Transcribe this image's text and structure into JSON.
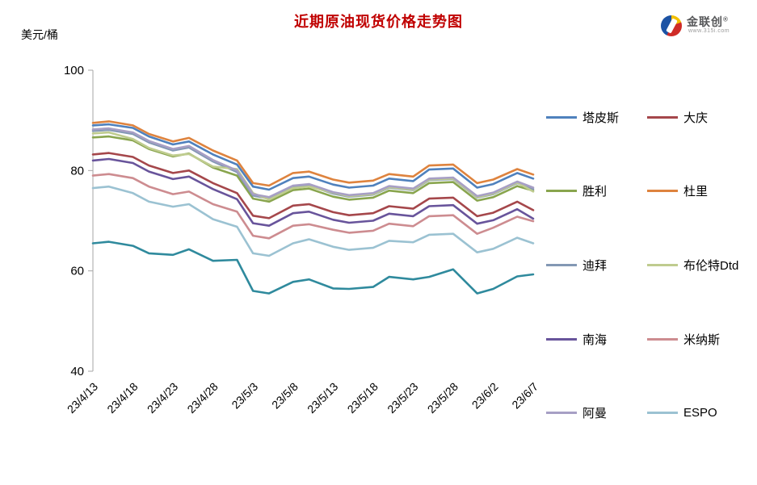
{
  "header": {
    "title": "近期原油现货价格走势图",
    "title_color": "#C00000",
    "unit_label": "美元/桶",
    "logo": {
      "brand": "金联创",
      "reg_mark": "®",
      "url_text": "www.315i.com"
    }
  },
  "chart_data": {
    "type": "line",
    "title": "近期原油现货价格走势图",
    "ylabel": "美元/桶",
    "ylim": [
      40,
      100
    ],
    "yticks": [
      40,
      60,
      80,
      100
    ],
    "grid": false,
    "legend_position": "right",
    "axis_color": "#A6A6A6",
    "x_tick_labels": [
      "23/4/13",
      "23/4/18",
      "23/4/23",
      "23/4/28",
      "23/5/3",
      "23/5/8",
      "23/5/13",
      "23/5/18",
      "23/5/23",
      "23/5/28",
      "23/6/2",
      "23/6/7"
    ],
    "x_tick_days": [
      0,
      5,
      10,
      15,
      20,
      25,
      30,
      35,
      40,
      45,
      50,
      55
    ],
    "x_total_days": 55,
    "anchor_dates": [
      "23/4/13",
      "23/4/15",
      "23/4/18",
      "23/4/20",
      "23/4/23",
      "23/4/25",
      "23/4/28",
      "23/5/1",
      "23/5/3",
      "23/5/5",
      "23/5/8",
      "23/5/10",
      "23/5/13",
      "23/5/15",
      "23/5/18",
      "23/5/20",
      "23/5/23",
      "23/5/25",
      "23/5/28",
      "23/5/31",
      "23/6/2",
      "23/6/5",
      "23/6/7"
    ],
    "anchor_days": [
      0,
      2,
      5,
      7,
      10,
      12,
      15,
      18,
      20,
      22,
      25,
      27,
      30,
      32,
      35,
      37,
      40,
      42,
      45,
      48,
      50,
      53,
      55
    ],
    "legend_order": [
      "塔皮斯",
      "大庆",
      "胜利",
      "杜里",
      "迪拜",
      "布伦特Dtd",
      "南海",
      "米纳斯",
      "阿曼",
      "ESPO"
    ],
    "series": [
      {
        "name": "塔皮斯",
        "color": "#4F81BD",
        "in_legend": true,
        "values": [
          89.0,
          89.2,
          88.5,
          86.8,
          85.2,
          85.8,
          83.2,
          81.2,
          76.8,
          76.2,
          78.5,
          78.8,
          77.2,
          76.6,
          77.0,
          78.4,
          77.9,
          80.2,
          80.4,
          76.6,
          77.3,
          79.5,
          78.4
        ]
      },
      {
        "name": "大庆",
        "color": "#A5474B",
        "in_legend": true,
        "values": [
          83.2,
          83.5,
          82.7,
          81.0,
          79.5,
          80.0,
          77.5,
          75.5,
          71.0,
          70.5,
          73.0,
          73.3,
          71.7,
          71.1,
          71.5,
          72.9,
          72.4,
          74.4,
          74.6,
          70.9,
          71.6,
          73.8,
          72.1
        ]
      },
      {
        "name": "胜利",
        "color": "#89A54E",
        "in_legend": true,
        "values": [
          86.6,
          86.8,
          86.0,
          84.3,
          82.8,
          83.4,
          80.6,
          79.0,
          74.4,
          73.8,
          76.1,
          76.4,
          74.8,
          74.2,
          74.6,
          76.0,
          75.5,
          77.5,
          77.7,
          74.0,
          74.7,
          76.9,
          76.0
        ]
      },
      {
        "name": "杜里",
        "color": "#DE833E",
        "in_legend": true,
        "values": [
          89.5,
          89.8,
          89.0,
          87.3,
          85.8,
          86.5,
          84.0,
          82.0,
          77.5,
          77.0,
          79.5,
          79.8,
          78.2,
          77.6,
          78.0,
          79.3,
          78.8,
          81.0,
          81.2,
          77.5,
          78.2,
          80.3,
          79.2
        ]
      },
      {
        "name": "迪拜",
        "color": "#8398B4",
        "in_legend": true,
        "values": [
          87.9,
          88.1,
          87.3,
          85.6,
          84.0,
          84.6,
          81.8,
          79.7,
          75.0,
          74.4,
          76.7,
          77.0,
          75.4,
          74.8,
          75.2,
          76.6,
          76.1,
          78.1,
          78.3,
          74.6,
          75.3,
          77.5,
          76.3
        ]
      },
      {
        "name": "布伦特Dtd",
        "color": "#BFCC8F",
        "in_legend": true,
        "values": [
          87.4,
          87.6,
          86.3,
          84.5,
          83.0,
          83.3,
          80.8,
          80.3,
          75.5,
          74.2,
          76.5,
          76.8,
          75.6,
          74.9,
          75.3,
          76.7,
          76.2,
          78.2,
          78.4,
          74.7,
          75.4,
          77.6,
          75.8
        ]
      },
      {
        "name": "南海",
        "color": "#68549B",
        "in_legend": true,
        "values": [
          82.0,
          82.3,
          81.5,
          79.8,
          78.3,
          78.8,
          76.3,
          74.3,
          69.5,
          69.0,
          71.5,
          71.8,
          70.2,
          69.6,
          70.0,
          71.4,
          70.9,
          72.9,
          73.1,
          69.4,
          70.1,
          72.3,
          70.4
        ]
      },
      {
        "name": "米纳斯",
        "color": "#CD8C90",
        "in_legend": true,
        "values": [
          79.0,
          79.3,
          78.5,
          76.8,
          75.3,
          75.8,
          73.3,
          71.8,
          67.0,
          66.5,
          69.0,
          69.3,
          68.2,
          67.6,
          68.0,
          69.4,
          68.9,
          70.9,
          71.1,
          67.4,
          68.6,
          70.8,
          69.9
        ]
      },
      {
        "name": "阿曼",
        "color": "#A79FC5",
        "in_legend": true,
        "values": [
          88.2,
          88.4,
          87.6,
          85.9,
          84.3,
          84.9,
          82.1,
          80.0,
          75.3,
          74.7,
          77.0,
          77.3,
          75.7,
          75.1,
          75.5,
          76.9,
          76.4,
          78.4,
          78.6,
          74.9,
          75.6,
          77.8,
          76.6
        ]
      },
      {
        "name": "ESPO",
        "color": "#9BC2D2",
        "in_legend": true,
        "values": [
          76.5,
          76.8,
          75.5,
          73.8,
          72.8,
          73.3,
          70.3,
          68.8,
          63.5,
          63.0,
          65.5,
          66.3,
          64.8,
          64.2,
          64.6,
          66.0,
          65.7,
          67.2,
          67.4,
          63.7,
          64.4,
          66.6,
          65.5
        ]
      },
      {
        "name": "",
        "color": "#2F8A9D",
        "in_legend": false,
        "values": [
          65.5,
          65.8,
          65.0,
          63.5,
          63.2,
          64.3,
          62.0,
          62.2,
          56.0,
          55.5,
          57.8,
          58.3,
          56.5,
          56.4,
          56.8,
          58.8,
          58.3,
          58.8,
          60.3,
          55.5,
          56.4,
          58.9,
          59.3
        ]
      }
    ]
  }
}
